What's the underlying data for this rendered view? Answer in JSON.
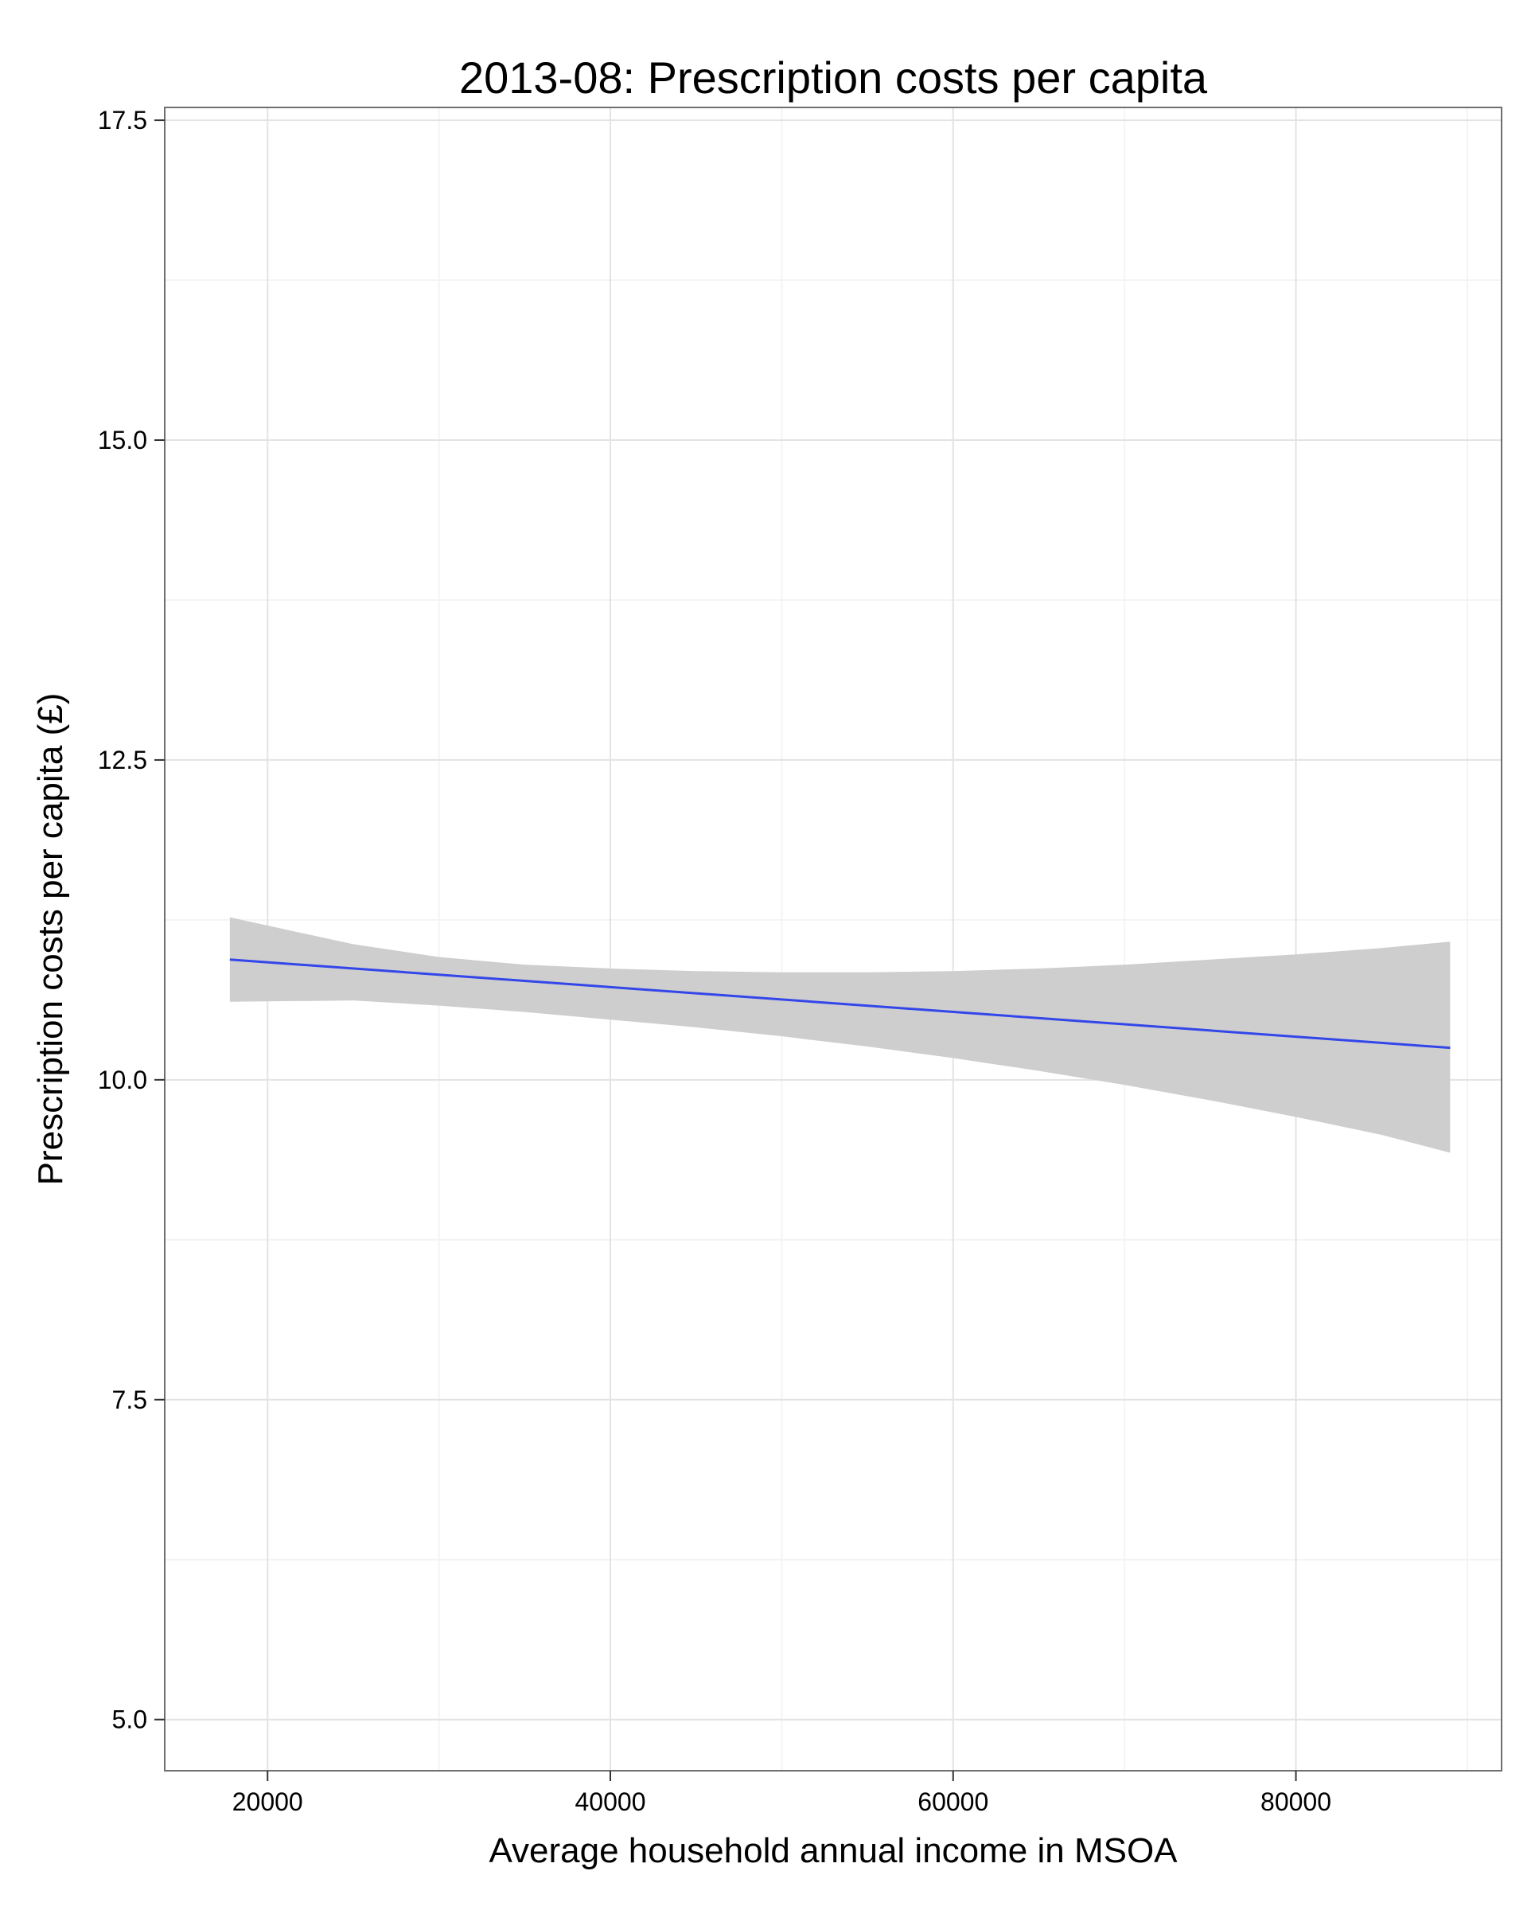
{
  "chart_data": {
    "type": "line",
    "title": "2013-08: Prescription costs per capita",
    "xlabel": "Average household annual income in MSOA",
    "ylabel": "Prescription costs per capita (£)",
    "xlim": [
      14000,
      92000
    ],
    "ylim": [
      4.6,
      17.6
    ],
    "x_ticks": [
      20000,
      40000,
      60000,
      80000
    ],
    "x_tick_labels": [
      "20000",
      "40000",
      "60000",
      "80000"
    ],
    "y_ticks": [
      5.0,
      7.5,
      10.0,
      12.5,
      15.0,
      17.5
    ],
    "y_tick_labels": [
      "5.0",
      "7.5",
      "10.0",
      "12.5",
      "15.0",
      "17.5"
    ],
    "grid": true,
    "colors": {
      "line": "#3346ea",
      "ribbon": "#cecece",
      "grid_major": "#e3e3e3",
      "grid_minor": "#f4f4f4",
      "border": "#6f6f6f"
    },
    "series": [
      {
        "name": "linear fit",
        "x": [
          17800,
          89000
        ],
        "y": [
          10.94,
          10.25
        ]
      }
    ],
    "confidence_band": {
      "x": [
        17800,
        25000,
        30000,
        35000,
        40000,
        45000,
        50000,
        55000,
        60000,
        65000,
        70000,
        75000,
        80000,
        85000,
        89000
      ],
      "lower": [
        10.61,
        10.62,
        10.58,
        10.53,
        10.47,
        10.41,
        10.34,
        10.26,
        10.17,
        10.07,
        9.96,
        9.84,
        9.71,
        9.57,
        9.43
      ],
      "upper": [
        11.27,
        11.06,
        10.96,
        10.9,
        10.87,
        10.85,
        10.84,
        10.84,
        10.85,
        10.87,
        10.9,
        10.94,
        10.98,
        11.03,
        11.08
      ]
    }
  }
}
